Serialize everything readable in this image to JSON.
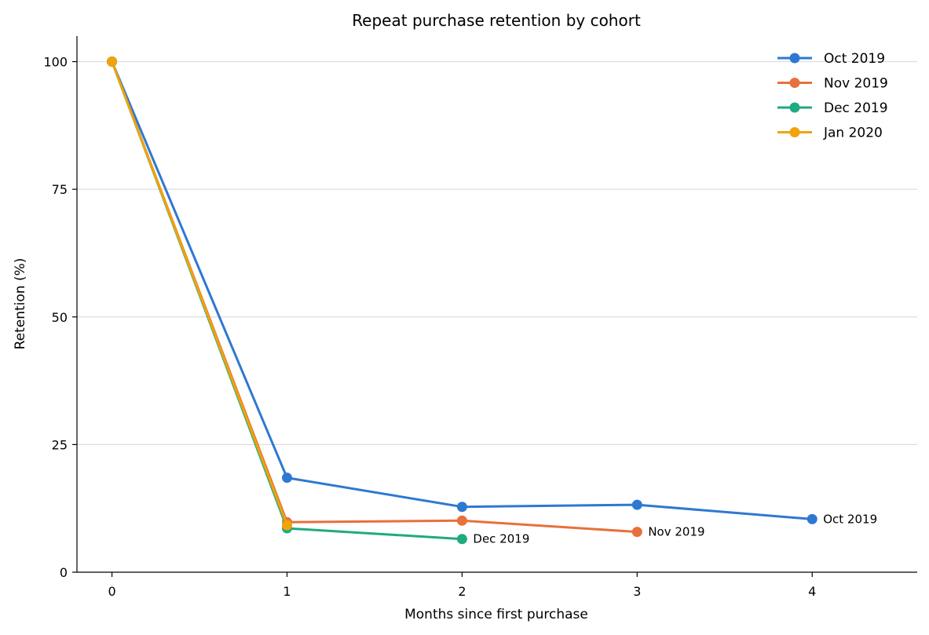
{
  "chart_data": {
    "type": "line",
    "title": "Repeat purchase retention by cohort",
    "xlabel": "Months since first purchase",
    "ylabel": "Retention (%)",
    "x_ticks": [
      0,
      1,
      2,
      3,
      4
    ],
    "y_ticks": [
      0,
      25,
      50,
      75,
      100
    ],
    "xlim": [
      -0.2,
      4.6
    ],
    "ylim": [
      0,
      105
    ],
    "grid": "horizontal",
    "legend_position": "top-right",
    "series": [
      {
        "name": "Oct 2019",
        "color": "#2e78d2",
        "x": [
          0,
          1,
          2,
          3,
          4
        ],
        "values": [
          100,
          18.5,
          12.8,
          13.2,
          10.4
        ],
        "end_label": "Oct 2019"
      },
      {
        "name": "Nov 2019",
        "color": "#e8703a",
        "x": [
          0,
          1,
          2,
          3
        ],
        "values": [
          100,
          9.8,
          10.1,
          7.9
        ],
        "end_label": "Nov 2019"
      },
      {
        "name": "Dec 2019",
        "color": "#1faa80",
        "x": [
          0,
          1,
          2
        ],
        "values": [
          100,
          8.6,
          6.5
        ],
        "end_label": "Dec 2019"
      },
      {
        "name": "Jan 2020",
        "color": "#f0a30a",
        "x": [
          0,
          1
        ],
        "values": [
          100,
          9.2
        ],
        "end_label": ""
      }
    ]
  }
}
